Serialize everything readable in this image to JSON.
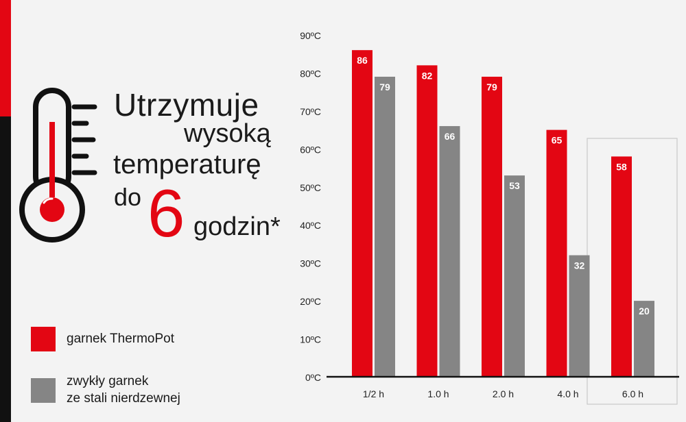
{
  "headline": {
    "line1": "Utrzymuje",
    "line2": "wysoką",
    "line3": "temperaturę",
    "line4": "do",
    "big_number": "6",
    "line5": "godzin*"
  },
  "colors": {
    "red": "#e30613",
    "gray": "#858585",
    "black": "#111111",
    "background": "#f3f3f3"
  },
  "icons": {
    "thermometer": "thermometer-icon"
  },
  "legend": [
    {
      "label": "garnek ThermoPot",
      "color": "#e30613"
    },
    {
      "label": "zwykły garnek\nze stali nierdzewnej",
      "color": "#858585"
    }
  ],
  "chart_data": {
    "type": "bar",
    "categories": [
      "1/2 h",
      "1.0 h",
      "2.0 h",
      "4.0 h",
      "6.0 h"
    ],
    "series": [
      {
        "name": "garnek ThermoPot",
        "values": [
          86,
          82,
          79,
          65,
          58
        ],
        "color": "#e30613"
      },
      {
        "name": "zwykły garnek ze stali nierdzewnej",
        "values": [
          79,
          66,
          53,
          32,
          20
        ],
        "color": "#858585"
      }
    ],
    "yticks": [
      "0ºC",
      "10ºC",
      "20ºC",
      "30ºC",
      "40ºC",
      "50ºC",
      "60ºC",
      "70ºC",
      "80ºC",
      "90ºC"
    ],
    "ylim": [
      0,
      90
    ],
    "grid": false,
    "highlighted_category": "6.0 h"
  }
}
